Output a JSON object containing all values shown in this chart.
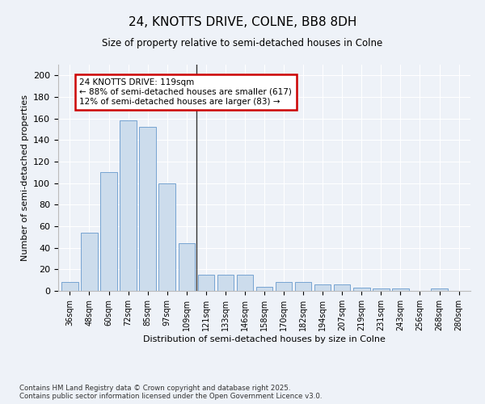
{
  "title": "24, KNOTTS DRIVE, COLNE, BB8 8DH",
  "subtitle": "Size of property relative to semi-detached houses in Colne",
  "xlabel": "Distribution of semi-detached houses by size in Colne",
  "ylabel": "Number of semi-detached properties",
  "categories": [
    "36sqm",
    "48sqm",
    "60sqm",
    "72sqm",
    "85sqm",
    "97sqm",
    "109sqm",
    "121sqm",
    "133sqm",
    "146sqm",
    "158sqm",
    "170sqm",
    "182sqm",
    "194sqm",
    "207sqm",
    "219sqm",
    "231sqm",
    "243sqm",
    "256sqm",
    "268sqm",
    "280sqm"
  ],
  "values": [
    8,
    54,
    110,
    158,
    152,
    100,
    44,
    15,
    15,
    15,
    4,
    8,
    8,
    6,
    6,
    3,
    2,
    2,
    0,
    2,
    0
  ],
  "bar_color": "#ccdcec",
  "bar_edge_color": "#6699cc",
  "vline_color": "#333333",
  "annotation_text": "24 KNOTTS DRIVE: 119sqm\n← 88% of semi-detached houses are smaller (617)\n12% of semi-detached houses are larger (83) →",
  "annotation_box_color": "#ffffff",
  "annotation_box_edge": "#cc0000",
  "footer_text": "Contains HM Land Registry data © Crown copyright and database right 2025.\nContains public sector information licensed under the Open Government Licence v3.0.",
  "bg_color": "#eef2f8",
  "grid_color": "#ffffff",
  "ylim": [
    0,
    210
  ],
  "yticks": [
    0,
    20,
    40,
    60,
    80,
    100,
    120,
    140,
    160,
    180,
    200
  ]
}
